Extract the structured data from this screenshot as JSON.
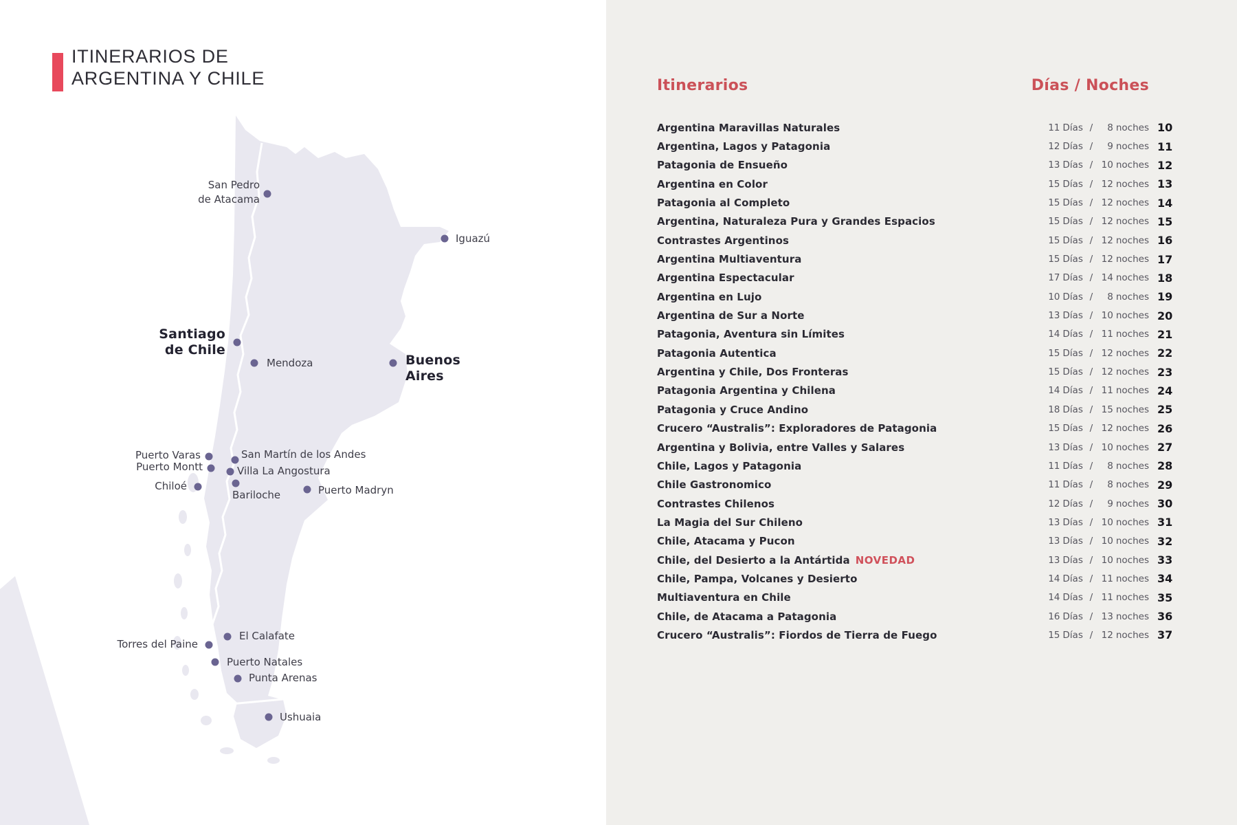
{
  "title": {
    "line1": "ITINERARIOS DE",
    "line2": "ARGENTINA Y CHILE"
  },
  "colors": {
    "accent_bar": "#E8495C",
    "heading_red": "#CB5158",
    "novedad_red": "#D0515B",
    "dot": "#6A6491",
    "land": "#E9E8F0",
    "panel_bg": "#F0EFEC"
  },
  "map": {
    "cities": [
      {
        "id": "san-pedro-de-atacama",
        "name": "San Pedro de Atacama",
        "text": "San Pedro\nde Atacama",
        "dot": [
          389,
          282
        ],
        "label": [
          378,
          280
        ],
        "align": "right",
        "bold": false
      },
      {
        "id": "iguazu",
        "name": "Iguazú",
        "text": "Iguazú",
        "dot": [
          647,
          347
        ],
        "label": [
          663,
          347
        ],
        "align": "left",
        "bold": false
      },
      {
        "id": "santiago-de-chile",
        "name": "Santiago de Chile",
        "text": "Santiago\nde Chile",
        "dot": [
          345,
          498
        ],
        "label": [
          328,
          498
        ],
        "align": "right",
        "bold": true
      },
      {
        "id": "mendoza",
        "name": "Mendoza",
        "text": "Mendoza",
        "dot": [
          370,
          528
        ],
        "label": [
          388,
          528
        ],
        "align": "left",
        "bold": false
      },
      {
        "id": "buenos-aires",
        "name": "Buenos Aires",
        "text": "Buenos\nAires",
        "dot": [
          572,
          528
        ],
        "label": [
          590,
          536
        ],
        "align": "left",
        "bold": true
      },
      {
        "id": "puerto-varas",
        "name": "Puerto Varas",
        "text": "Puerto Varas",
        "dot": [
          304,
          664
        ],
        "label": [
          292,
          662
        ],
        "align": "right",
        "bold": false
      },
      {
        "id": "san-martin-de-los-andes",
        "name": "San Martín de los Andes",
        "text": "San Martín de los Andes",
        "dot": [
          342,
          669
        ],
        "label": [
          351,
          661
        ],
        "align": "left",
        "bold": false
      },
      {
        "id": "puerto-montt",
        "name": "Puerto Montt",
        "text": "Puerto Montt",
        "dot": [
          307,
          681
        ],
        "label": [
          295,
          679
        ],
        "align": "right",
        "bold": false
      },
      {
        "id": "villa-la-angostura",
        "name": "Villa La Angostura",
        "text": "Villa La Angostura",
        "dot": [
          335,
          686
        ],
        "label": [
          345,
          685
        ],
        "align": "left",
        "bold": false
      },
      {
        "id": "chiloe",
        "name": "Chiloé",
        "text": "Chiloé",
        "dot": [
          288,
          708
        ],
        "label": [
          272,
          707
        ],
        "align": "right",
        "bold": false
      },
      {
        "id": "bariloche",
        "name": "Bariloche",
        "text": "Bariloche",
        "dot": [
          343,
          703
        ],
        "label": [
          338,
          720
        ],
        "align": "left",
        "bold": false
      },
      {
        "id": "puerto-madryn",
        "name": "Puerto Madryn",
        "text": "Puerto Madryn",
        "dot": [
          447,
          712
        ],
        "label": [
          463,
          713
        ],
        "align": "left",
        "bold": false
      },
      {
        "id": "el-calafate",
        "name": "El Calafate",
        "text": "El Calafate",
        "dot": [
          331,
          926
        ],
        "label": [
          348,
          925
        ],
        "align": "left",
        "bold": false
      },
      {
        "id": "torres-del-paine",
        "name": "Torres del Paine",
        "text": "Torres del Paine",
        "dot": [
          304,
          938
        ],
        "label": [
          288,
          937
        ],
        "align": "right",
        "bold": false
      },
      {
        "id": "puerto-natales",
        "name": "Puerto Natales",
        "text": "Puerto Natales",
        "dot": [
          313,
          963
        ],
        "label": [
          330,
          963
        ],
        "align": "left",
        "bold": false
      },
      {
        "id": "punta-arenas",
        "name": "Punta Arenas",
        "text": "Punta Arenas",
        "dot": [
          346,
          987
        ],
        "label": [
          362,
          986
        ],
        "align": "left",
        "bold": false
      },
      {
        "id": "ushuaia",
        "name": "Ushuaia",
        "text": "Ushuaia",
        "dot": [
          391,
          1043
        ],
        "label": [
          407,
          1043
        ],
        "align": "left",
        "bold": false
      }
    ]
  },
  "list": {
    "heading_left": "Itinerarios",
    "heading_right": "Días / Noches",
    "days_word": "Días",
    "nights_word": "noches",
    "separator": "/",
    "items": [
      {
        "name": "Argentina Maravillas Naturales",
        "badge": "",
        "days": 11,
        "nights": 8,
        "page": 10
      },
      {
        "name": "Argentina, Lagos y Patagonia",
        "badge": "",
        "days": 12,
        "nights": 9,
        "page": 11
      },
      {
        "name": "Patagonia de Ensueño",
        "badge": "",
        "days": 13,
        "nights": 10,
        "page": 12
      },
      {
        "name": "Argentina en Color",
        "badge": "",
        "days": 15,
        "nights": 12,
        "page": 13
      },
      {
        "name": "Patagonia al Completo",
        "badge": "",
        "days": 15,
        "nights": 12,
        "page": 14
      },
      {
        "name": "Argentina, Naturaleza Pura y Grandes Espacios",
        "badge": "",
        "days": 15,
        "nights": 12,
        "page": 15
      },
      {
        "name": "Contrastes Argentinos",
        "badge": "",
        "days": 15,
        "nights": 12,
        "page": 16
      },
      {
        "name": "Argentina Multiaventura",
        "badge": "",
        "days": 15,
        "nights": 12,
        "page": 17
      },
      {
        "name": "Argentina Espectacular",
        "badge": "",
        "days": 17,
        "nights": 14,
        "page": 18
      },
      {
        "name": "Argentina en Lujo",
        "badge": "",
        "days": 10,
        "nights": 8,
        "page": 19
      },
      {
        "name": "Argentina de Sur a Norte",
        "badge": "",
        "days": 13,
        "nights": 10,
        "page": 20
      },
      {
        "name": "Patagonia, Aventura sin Límites",
        "badge": "",
        "days": 14,
        "nights": 11,
        "page": 21
      },
      {
        "name": "Patagonia Autentica",
        "badge": "",
        "days": 15,
        "nights": 12,
        "page": 22
      },
      {
        "name": "Argentina y Chile, Dos Fronteras",
        "badge": "",
        "days": 15,
        "nights": 12,
        "page": 23
      },
      {
        "name": "Patagonia Argentina y Chilena",
        "badge": "",
        "days": 14,
        "nights": 11,
        "page": 24
      },
      {
        "name": "Patagonia y Cruce Andino",
        "badge": "",
        "days": 18,
        "nights": 15,
        "page": 25
      },
      {
        "name": "Crucero “Australis”: Exploradores de Patagonia",
        "badge": "",
        "days": 15,
        "nights": 12,
        "page": 26
      },
      {
        "name": "Argentina y Bolivia, entre Valles y Salares",
        "badge": "",
        "days": 13,
        "nights": 10,
        "page": 27
      },
      {
        "name": "Chile, Lagos y Patagonia",
        "badge": "",
        "days": 11,
        "nights": 8,
        "page": 28
      },
      {
        "name": "Chile Gastronomico",
        "badge": "",
        "days": 11,
        "nights": 8,
        "page": 29
      },
      {
        "name": "Contrastes Chilenos",
        "badge": "",
        "days": 12,
        "nights": 9,
        "page": 30
      },
      {
        "name": "La Magia del Sur Chileno",
        "badge": "",
        "days": 13,
        "nights": 10,
        "page": 31
      },
      {
        "name": "Chile, Atacama y Pucon",
        "badge": "",
        "days": 13,
        "nights": 10,
        "page": 32
      },
      {
        "name": "Chile, del Desierto a la Antártida",
        "badge": "NOVEDAD",
        "days": 13,
        "nights": 10,
        "page": 33
      },
      {
        "name": "Chile, Pampa, Volcanes y Desierto",
        "badge": "",
        "days": 14,
        "nights": 11,
        "page": 34
      },
      {
        "name": "Multiaventura en Chile",
        "badge": "",
        "days": 14,
        "nights": 11,
        "page": 35
      },
      {
        "name": "Chile, de Atacama a Patagonia",
        "badge": "",
        "days": 16,
        "nights": 13,
        "page": 36
      },
      {
        "name": "Crucero “Australis”: Fiordos de Tierra de Fuego",
        "badge": "",
        "days": 15,
        "nights": 12,
        "page": 37
      }
    ]
  }
}
